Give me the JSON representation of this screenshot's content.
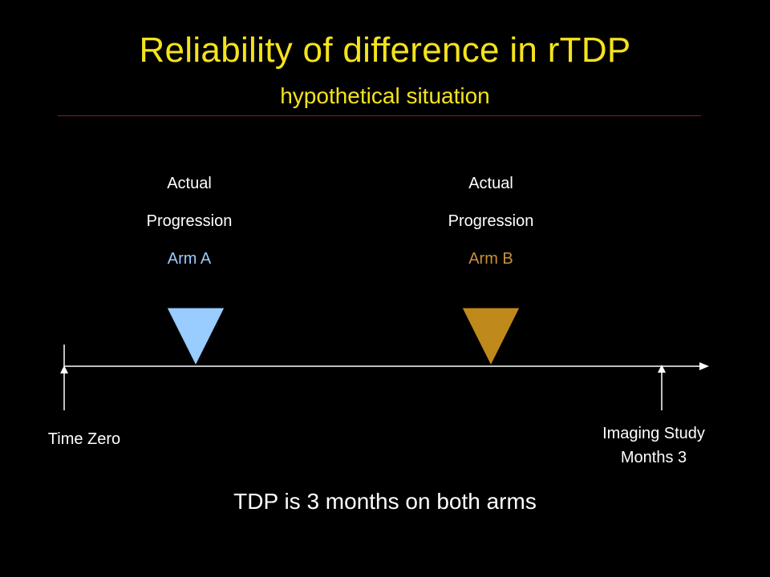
{
  "title": "Reliability of difference in rTDP",
  "subtitle": "hypothetical situation",
  "colors": {
    "title": "#f5e31c",
    "divider": "#8a1f1f",
    "arm_a": "#99ccff",
    "arm_b": "#c0891c",
    "text": "#ffffff"
  },
  "markers": [
    {
      "line1": "Actual",
      "line2": "Progression",
      "arm": "Arm A"
    },
    {
      "line1": "Actual",
      "line2": "Progression",
      "arm": "Arm B"
    }
  ],
  "timeline": {
    "start_label": "Time Zero",
    "end_label_line1": "Imaging Study",
    "end_label_line2": "Months 3"
  },
  "note": "TDP is 3 months on both arms"
}
